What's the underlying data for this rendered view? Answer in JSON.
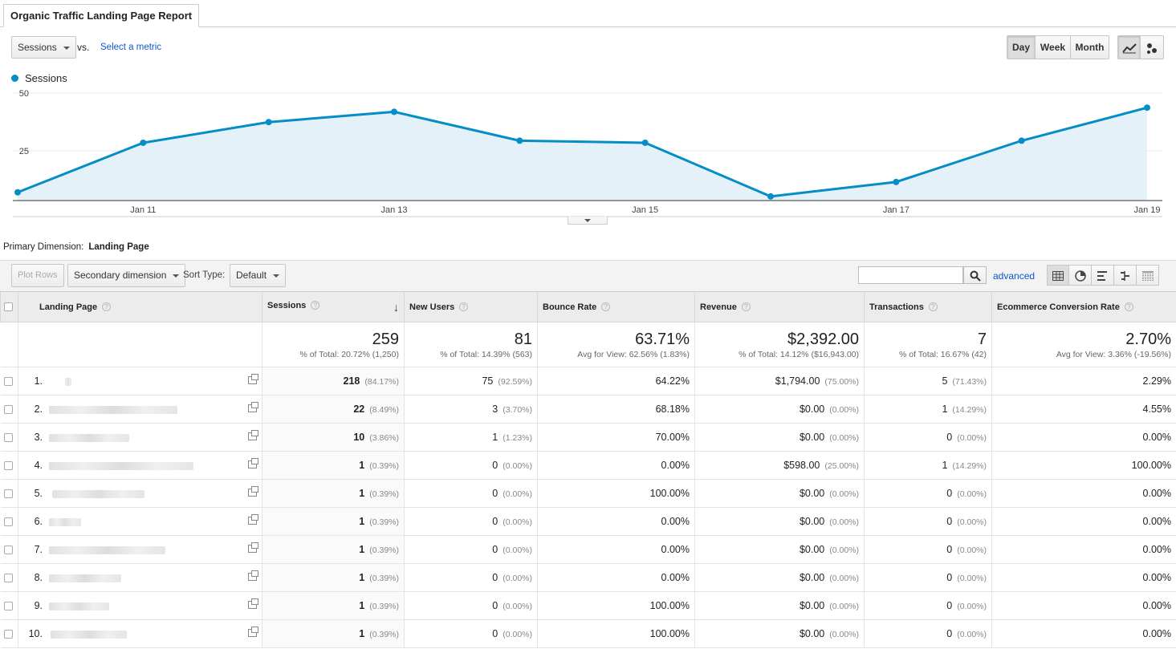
{
  "report": {
    "tab_title": "Organic Traffic Landing Page Report"
  },
  "controls": {
    "metric_select": "Sessions",
    "vs_label": "vs.",
    "select_metric_link": "Select a metric",
    "periods": [
      "Day",
      "Week",
      "Month"
    ],
    "active_period": "Day"
  },
  "chart_data": {
    "type": "area",
    "series": [
      {
        "name": "Sessions",
        "values": [
          4,
          28,
          38,
          43,
          29,
          28,
          2,
          9,
          29,
          45
        ]
      }
    ],
    "x": [
      "Jan 10",
      "Jan 11",
      "Jan 12",
      "Jan 13",
      "Jan 14",
      "Jan 15",
      "Jan 16",
      "Jan 17",
      "Jan 18",
      "Jan 19"
    ],
    "x_ticks": [
      "Jan 11",
      "Jan 13",
      "Jan 15",
      "Jan 17",
      "Jan 19"
    ],
    "y_ticks": [
      "50",
      "25"
    ],
    "ylim": [
      0,
      50
    ],
    "color": "#058dc7",
    "fill": "#e5f1f8",
    "legend": "top-left"
  },
  "dimension": {
    "label": "Primary Dimension:",
    "value": "Landing Page"
  },
  "toolbar": {
    "plot_rows": "Plot Rows",
    "secondary_dimension": "Secondary dimension",
    "sort_type_label": "Sort Type:",
    "sort_type_value": "Default",
    "search_placeholder": "",
    "advanced_link": "advanced"
  },
  "table": {
    "headers": [
      "Landing Page",
      "Sessions",
      "New Users",
      "Bounce Rate",
      "Revenue",
      "Transactions",
      "Ecommerce Conversion Rate"
    ],
    "totals": [
      {
        "big": "259",
        "sub": "% of Total: 20.72% (1,250)"
      },
      {
        "big": "81",
        "sub": "% of Total: 14.39% (563)"
      },
      {
        "big": "63.71%",
        "sub": "Avg for View: 62.56% (1.83%)"
      },
      {
        "big": "$2,392.00",
        "sub": "% of Total: 14.12% ($16,943.00)"
      },
      {
        "big": "7",
        "sub": "% of Total: 16.67% (42)"
      },
      {
        "big": "2.70%",
        "sub": "Avg for View: 3.36% (-19.56%)"
      }
    ],
    "rows": [
      {
        "idx": "1.",
        "sessions": "218",
        "sessions_pct": "(84.17%)",
        "new_users": "75",
        "new_users_pct": "(92.59%)",
        "bounce": "64.22%",
        "revenue": "$1,794.00",
        "revenue_pct": "(75.00%)",
        "trans": "5",
        "trans_pct": "(71.43%)",
        "conv": "2.29%"
      },
      {
        "idx": "2.",
        "sessions": "22",
        "sessions_pct": "(8.49%)",
        "new_users": "3",
        "new_users_pct": "(3.70%)",
        "bounce": "68.18%",
        "revenue": "$0.00",
        "revenue_pct": "(0.00%)",
        "trans": "1",
        "trans_pct": "(14.29%)",
        "conv": "4.55%"
      },
      {
        "idx": "3.",
        "sessions": "10",
        "sessions_pct": "(3.86%)",
        "new_users": "1",
        "new_users_pct": "(1.23%)",
        "bounce": "70.00%",
        "revenue": "$0.00",
        "revenue_pct": "(0.00%)",
        "trans": "0",
        "trans_pct": "(0.00%)",
        "conv": "0.00%"
      },
      {
        "idx": "4.",
        "sessions": "1",
        "sessions_pct": "(0.39%)",
        "new_users": "0",
        "new_users_pct": "(0.00%)",
        "bounce": "0.00%",
        "revenue": "$598.00",
        "revenue_pct": "(25.00%)",
        "trans": "1",
        "trans_pct": "(14.29%)",
        "conv": "100.00%"
      },
      {
        "idx": "5.",
        "sessions": "1",
        "sessions_pct": "(0.39%)",
        "new_users": "0",
        "new_users_pct": "(0.00%)",
        "bounce": "100.00%",
        "revenue": "$0.00",
        "revenue_pct": "(0.00%)",
        "trans": "0",
        "trans_pct": "(0.00%)",
        "conv": "0.00%"
      },
      {
        "idx": "6.",
        "sessions": "1",
        "sessions_pct": "(0.39%)",
        "new_users": "0",
        "new_users_pct": "(0.00%)",
        "bounce": "0.00%",
        "revenue": "$0.00",
        "revenue_pct": "(0.00%)",
        "trans": "0",
        "trans_pct": "(0.00%)",
        "conv": "0.00%"
      },
      {
        "idx": "7.",
        "sessions": "1",
        "sessions_pct": "(0.39%)",
        "new_users": "0",
        "new_users_pct": "(0.00%)",
        "bounce": "0.00%",
        "revenue": "$0.00",
        "revenue_pct": "(0.00%)",
        "trans": "0",
        "trans_pct": "(0.00%)",
        "conv": "0.00%"
      },
      {
        "idx": "8.",
        "sessions": "1",
        "sessions_pct": "(0.39%)",
        "new_users": "0",
        "new_users_pct": "(0.00%)",
        "bounce": "0.00%",
        "revenue": "$0.00",
        "revenue_pct": "(0.00%)",
        "trans": "0",
        "trans_pct": "(0.00%)",
        "conv": "0.00%"
      },
      {
        "idx": "9.",
        "sessions": "1",
        "sessions_pct": "(0.39%)",
        "new_users": "0",
        "new_users_pct": "(0.00%)",
        "bounce": "100.00%",
        "revenue": "$0.00",
        "revenue_pct": "(0.00%)",
        "trans": "0",
        "trans_pct": "(0.00%)",
        "conv": "0.00%"
      },
      {
        "idx": "10.",
        "sessions": "1",
        "sessions_pct": "(0.39%)",
        "new_users": "0",
        "new_users_pct": "(0.00%)",
        "bounce": "100.00%",
        "revenue": "$0.00",
        "revenue_pct": "(0.00%)",
        "trans": "0",
        "trans_pct": "(0.00%)",
        "conv": "0.00%"
      }
    ]
  }
}
